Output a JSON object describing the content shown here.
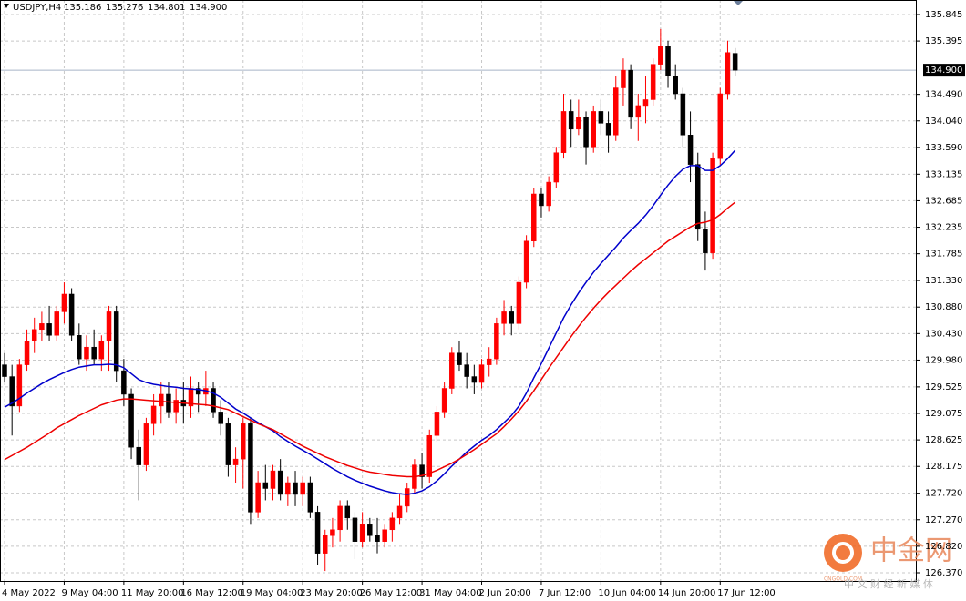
{
  "chart_data": {
    "type": "candlestick",
    "title": "USDJPY,H4",
    "categories": [
      "4 May 2022",
      null,
      null,
      null,
      null,
      null,
      null,
      null,
      "9 May 04:00",
      null,
      null,
      null,
      null,
      null,
      null,
      null,
      "11 May 20:00",
      null,
      null,
      null,
      null,
      null,
      null,
      null,
      "16 May 12:00",
      null,
      null,
      null,
      null,
      null,
      null,
      null,
      "19 May 04:00",
      null,
      null,
      null,
      null,
      null,
      null,
      null,
      "23 May 20:00",
      null,
      null,
      null,
      null,
      null,
      null,
      null,
      "26 May 12:00",
      null,
      null,
      null,
      null,
      null,
      null,
      null,
      "31 May 04:00",
      null,
      null,
      null,
      null,
      null,
      null,
      null,
      "2 Jun 20:00",
      null,
      null,
      null,
      null,
      null,
      null,
      null,
      "7 Jun 12:00",
      null,
      null,
      null,
      null,
      null,
      null,
      null,
      "10 Jun 04:00",
      null,
      null,
      null,
      null,
      null,
      null,
      null,
      "14 Jun 20:00",
      null,
      null,
      null,
      null,
      null,
      null,
      null,
      "17 Jun 12:00",
      null,
      null
    ],
    "open": [
      129.9,
      129.7,
      129.2,
      129.9,
      130.3,
      130.5,
      130.6,
      130.4,
      130.8,
      131.1,
      130.4,
      130.0,
      130.2,
      130.0,
      130.3,
      130.8,
      129.8,
      129.4,
      128.5,
      128.2,
      128.9,
      129.2,
      129.4,
      129.1,
      129.3,
      129.2,
      129.5,
      129.4,
      129.5,
      129.1,
      128.9,
      128.2,
      128.3,
      128.9,
      127.4,
      127.9,
      127.8,
      128.1,
      127.7,
      127.9,
      127.7,
      127.9,
      127.4,
      126.7,
      127.0,
      127.1,
      127.5,
      127.3,
      126.9,
      127.2,
      127.0,
      126.9,
      127.1,
      127.3,
      127.5,
      127.8,
      128.2,
      128.0,
      128.7,
      129.1,
      129.5,
      130.1,
      129.9,
      129.7,
      129.6,
      129.9,
      130.0,
      130.6,
      130.8,
      130.6,
      131.3,
      132.0,
      132.8,
      132.6,
      133.0,
      133.5,
      134.2,
      133.9,
      134.1,
      133.6,
      134.2,
      134.0,
      133.8,
      134.6,
      134.9,
      134.1,
      134.3,
      134.4,
      135.0,
      135.3,
      134.8,
      134.5,
      133.8,
      133.3,
      132.2,
      131.8,
      133.4,
      134.5,
      135.186
    ],
    "high": [
      130.1,
      129.9,
      130.0,
      130.5,
      130.7,
      130.8,
      130.9,
      130.9,
      131.3,
      131.2,
      130.6,
      130.4,
      130.5,
      130.4,
      130.9,
      130.9,
      130.0,
      129.5,
      128.8,
      129.0,
      129.4,
      129.6,
      129.6,
      129.5,
      129.6,
      129.7,
      129.6,
      129.8,
      129.6,
      129.3,
      129.0,
      128.5,
      129.0,
      129.0,
      128.1,
      128.2,
      128.2,
      128.3,
      128.0,
      128.1,
      128.0,
      128.0,
      127.5,
      127.1,
      127.3,
      127.6,
      127.6,
      127.4,
      127.4,
      127.3,
      127.3,
      127.2,
      127.4,
      127.7,
      127.9,
      128.3,
      128.4,
      128.8,
      129.2,
      129.6,
      130.2,
      130.3,
      130.1,
      129.9,
      130.0,
      130.2,
      130.7,
      131.0,
      130.9,
      131.4,
      132.1,
      132.9,
      132.9,
      133.1,
      133.6,
      134.5,
      134.4,
      134.4,
      134.2,
      134.3,
      134.4,
      134.2,
      134.8,
      135.1,
      135.0,
      134.5,
      134.8,
      135.1,
      135.6,
      135.4,
      135.0,
      134.6,
      134.2,
      133.5,
      132.5,
      133.5,
      134.6,
      135.4,
      135.276
    ],
    "low": [
      129.6,
      128.7,
      129.1,
      129.8,
      130.1,
      130.3,
      130.3,
      130.3,
      130.6,
      130.3,
      129.9,
      129.8,
      129.9,
      129.8,
      129.8,
      129.6,
      129.2,
      128.3,
      127.6,
      128.1,
      128.7,
      128.9,
      129.0,
      128.9,
      128.9,
      129.0,
      129.1,
      129.2,
      129.0,
      128.7,
      128.0,
      127.9,
      127.8,
      127.2,
      127.3,
      127.6,
      127.6,
      127.6,
      127.5,
      127.5,
      127.5,
      127.3,
      126.5,
      126.4,
      126.8,
      126.9,
      127.1,
      126.6,
      126.8,
      126.9,
      126.7,
      126.8,
      126.9,
      127.2,
      127.4,
      127.7,
      127.8,
      127.9,
      128.6,
      129.0,
      129.4,
      129.8,
      129.5,
      129.4,
      129.5,
      129.7,
      129.9,
      130.4,
      130.4,
      130.5,
      131.2,
      131.9,
      132.4,
      132.5,
      132.9,
      133.4,
      133.6,
      133.8,
      133.3,
      133.5,
      133.8,
      133.5,
      133.7,
      134.3,
      133.9,
      133.7,
      134.0,
      134.3,
      134.9,
      134.6,
      134.4,
      133.6,
      133.0,
      132.0,
      131.5,
      131.7,
      133.3,
      134.4,
      134.801
    ],
    "close": [
      129.7,
      129.2,
      129.9,
      130.3,
      130.5,
      130.6,
      130.4,
      130.8,
      131.1,
      130.4,
      130.0,
      130.2,
      130.0,
      130.3,
      130.8,
      129.8,
      129.4,
      128.5,
      128.2,
      128.9,
      129.2,
      129.4,
      129.1,
      129.3,
      129.2,
      129.5,
      129.4,
      129.5,
      129.1,
      128.9,
      128.2,
      128.3,
      128.9,
      127.4,
      127.9,
      127.8,
      128.1,
      127.7,
      127.9,
      127.7,
      127.9,
      127.4,
      126.7,
      127.0,
      127.1,
      127.5,
      127.3,
      126.9,
      127.2,
      127.0,
      126.9,
      127.1,
      127.3,
      127.5,
      127.8,
      128.2,
      128.0,
      128.7,
      129.1,
      129.5,
      130.1,
      129.9,
      129.7,
      129.6,
      129.9,
      130.0,
      130.6,
      130.8,
      130.6,
      131.3,
      132.0,
      132.8,
      132.6,
      133.0,
      133.5,
      134.2,
      133.9,
      134.1,
      133.6,
      134.2,
      134.0,
      133.8,
      134.6,
      134.9,
      134.1,
      134.3,
      134.4,
      135.0,
      135.3,
      134.8,
      134.5,
      133.8,
      133.3,
      132.2,
      131.8,
      133.4,
      134.5,
      135.2,
      134.9
    ],
    "up_color": "#ff0000",
    "down_color": "#000000",
    "series": [
      {
        "color": "#0000cc",
        "values": [
          129.18,
          129.25,
          129.33,
          129.42,
          129.5,
          129.58,
          129.65,
          129.71,
          129.77,
          129.82,
          129.86,
          129.88,
          129.9,
          129.9,
          129.91,
          129.9,
          129.85,
          129.75,
          129.65,
          129.6,
          129.57,
          129.55,
          129.53,
          129.52,
          129.5,
          129.49,
          129.48,
          129.46,
          129.42,
          129.35,
          129.25,
          129.15,
          129.08,
          129.0,
          128.92,
          128.85,
          128.78,
          128.68,
          128.6,
          128.52,
          128.45,
          128.38,
          128.3,
          128.22,
          128.14,
          128.07,
          128.0,
          127.94,
          127.89,
          127.84,
          127.8,
          127.76,
          127.73,
          127.71,
          127.7,
          127.72,
          127.76,
          127.83,
          127.93,
          128.05,
          128.18,
          128.3,
          128.42,
          128.52,
          128.62,
          128.7,
          128.8,
          128.92,
          129.04,
          129.2,
          129.42,
          129.68,
          129.92,
          130.18,
          130.44,
          130.7,
          130.92,
          131.12,
          131.3,
          131.47,
          131.62,
          131.76,
          131.9,
          132.05,
          132.18,
          132.3,
          132.44,
          132.6,
          132.78,
          132.95,
          133.1,
          133.22,
          133.28,
          133.28,
          133.2,
          133.2,
          133.28,
          133.4,
          133.54
        ]
      },
      {
        "color": "#ee0000",
        "values": [
          128.29,
          128.36,
          128.43,
          128.5,
          128.58,
          128.66,
          128.74,
          128.83,
          128.9,
          128.97,
          129.04,
          129.1,
          129.16,
          129.22,
          129.26,
          129.3,
          129.32,
          129.32,
          129.31,
          129.3,
          129.29,
          129.28,
          129.27,
          129.26,
          129.25,
          129.24,
          129.23,
          129.22,
          129.2,
          129.17,
          129.14,
          129.08,
          129.02,
          128.96,
          128.9,
          128.85,
          128.8,
          128.73,
          128.66,
          128.59,
          128.52,
          128.46,
          128.4,
          128.34,
          128.29,
          128.24,
          128.19,
          128.15,
          128.11,
          128.08,
          128.06,
          128.04,
          128.02,
          128.01,
          128.0,
          128.0,
          128.02,
          128.06,
          128.11,
          128.17,
          128.23,
          128.3,
          128.38,
          128.46,
          128.55,
          128.64,
          128.73,
          128.85,
          128.98,
          129.12,
          129.28,
          129.46,
          129.65,
          129.84,
          130.02,
          130.2,
          130.38,
          130.55,
          130.71,
          130.86,
          131.0,
          131.13,
          131.25,
          131.37,
          131.49,
          131.6,
          131.7,
          131.8,
          131.9,
          132.0,
          132.08,
          132.16,
          132.24,
          132.3,
          132.32,
          132.36,
          132.45,
          132.56,
          132.66
        ]
      }
    ],
    "last_price": {
      "value": 134.9,
      "label": "134.900"
    },
    "ylim": [
      126.231,
      136.092
    ],
    "yticks": [
      135.845,
      135.395,
      {
        "value": 134.49,
        "label": "134.490"
      },
      {
        "value": 134.04,
        "label": "134.040"
      },
      {
        "value": 133.59,
        "label": "133.590"
      },
      133.135,
      132.685,
      132.235,
      131.785,
      {
        "value": 131.33,
        "label": "131.330"
      },
      {
        "value": 130.88,
        "label": "130.880"
      },
      {
        "value": 130.43,
        "label": "130.430"
      },
      {
        "value": 129.98,
        "label": "129.980"
      },
      129.525,
      129.075,
      128.625,
      128.175,
      {
        "value": 127.72,
        "label": "127.720"
      },
      {
        "value": 127.27,
        "label": "127.270"
      },
      {
        "value": 126.82,
        "label": "126.820"
      },
      {
        "value": 126.37,
        "label": "126.370"
      }
    ],
    "grid": true
  },
  "watermark": {
    "name": "中金网",
    "site": "CNGOLD.COM",
    "slogan": "中 文 财 经 新 媒 体"
  }
}
